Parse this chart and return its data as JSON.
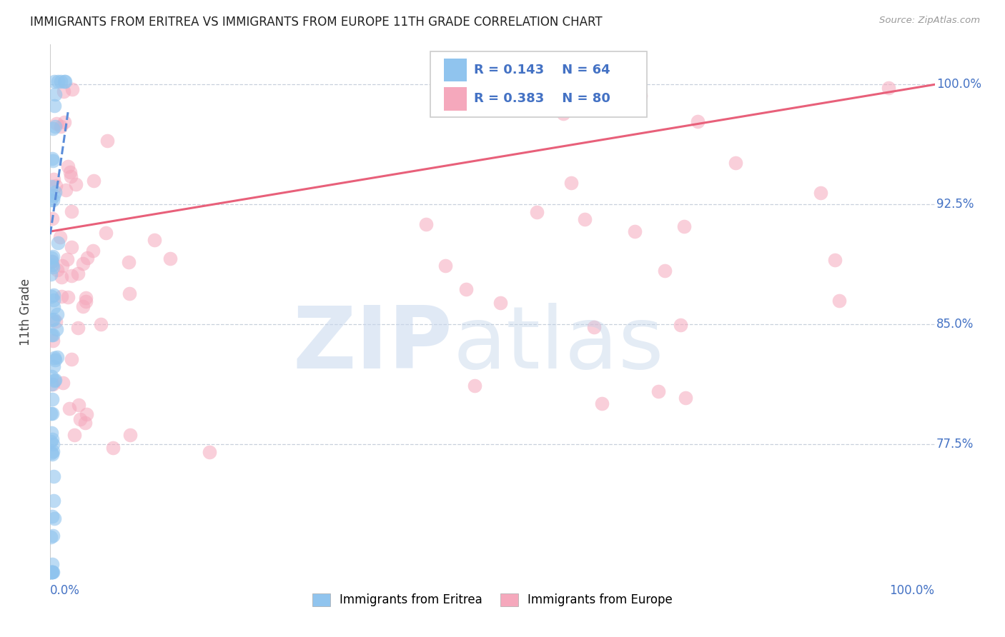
{
  "title": "IMMIGRANTS FROM ERITREA VS IMMIGRANTS FROM EUROPE 11TH GRADE CORRELATION CHART",
  "source": "Source: ZipAtlas.com",
  "ylabel": "11th Grade",
  "ytick_labels": [
    "100.0%",
    "92.5%",
    "85.0%",
    "77.5%"
  ],
  "ytick_values": [
    1.0,
    0.925,
    0.85,
    0.775
  ],
  "xtick_left": "0.0%",
  "xtick_right": "100.0%",
  "xlim": [
    0.0,
    1.0
  ],
  "ylim": [
    0.69,
    1.025
  ],
  "legend_r1": "R = 0.143",
  "legend_n1": "N = 64",
  "legend_r2": "R = 0.383",
  "legend_n2": "N = 80",
  "color_eritrea": "#90C4EE",
  "color_europe": "#F5A8BC",
  "color_line_eritrea": "#5B8DD9",
  "color_line_europe": "#E8607A",
  "color_blue_text": "#4472C4",
  "color_grid": "#C8D0DC",
  "watermark_zip": "ZIP",
  "watermark_atlas": "atlas"
}
